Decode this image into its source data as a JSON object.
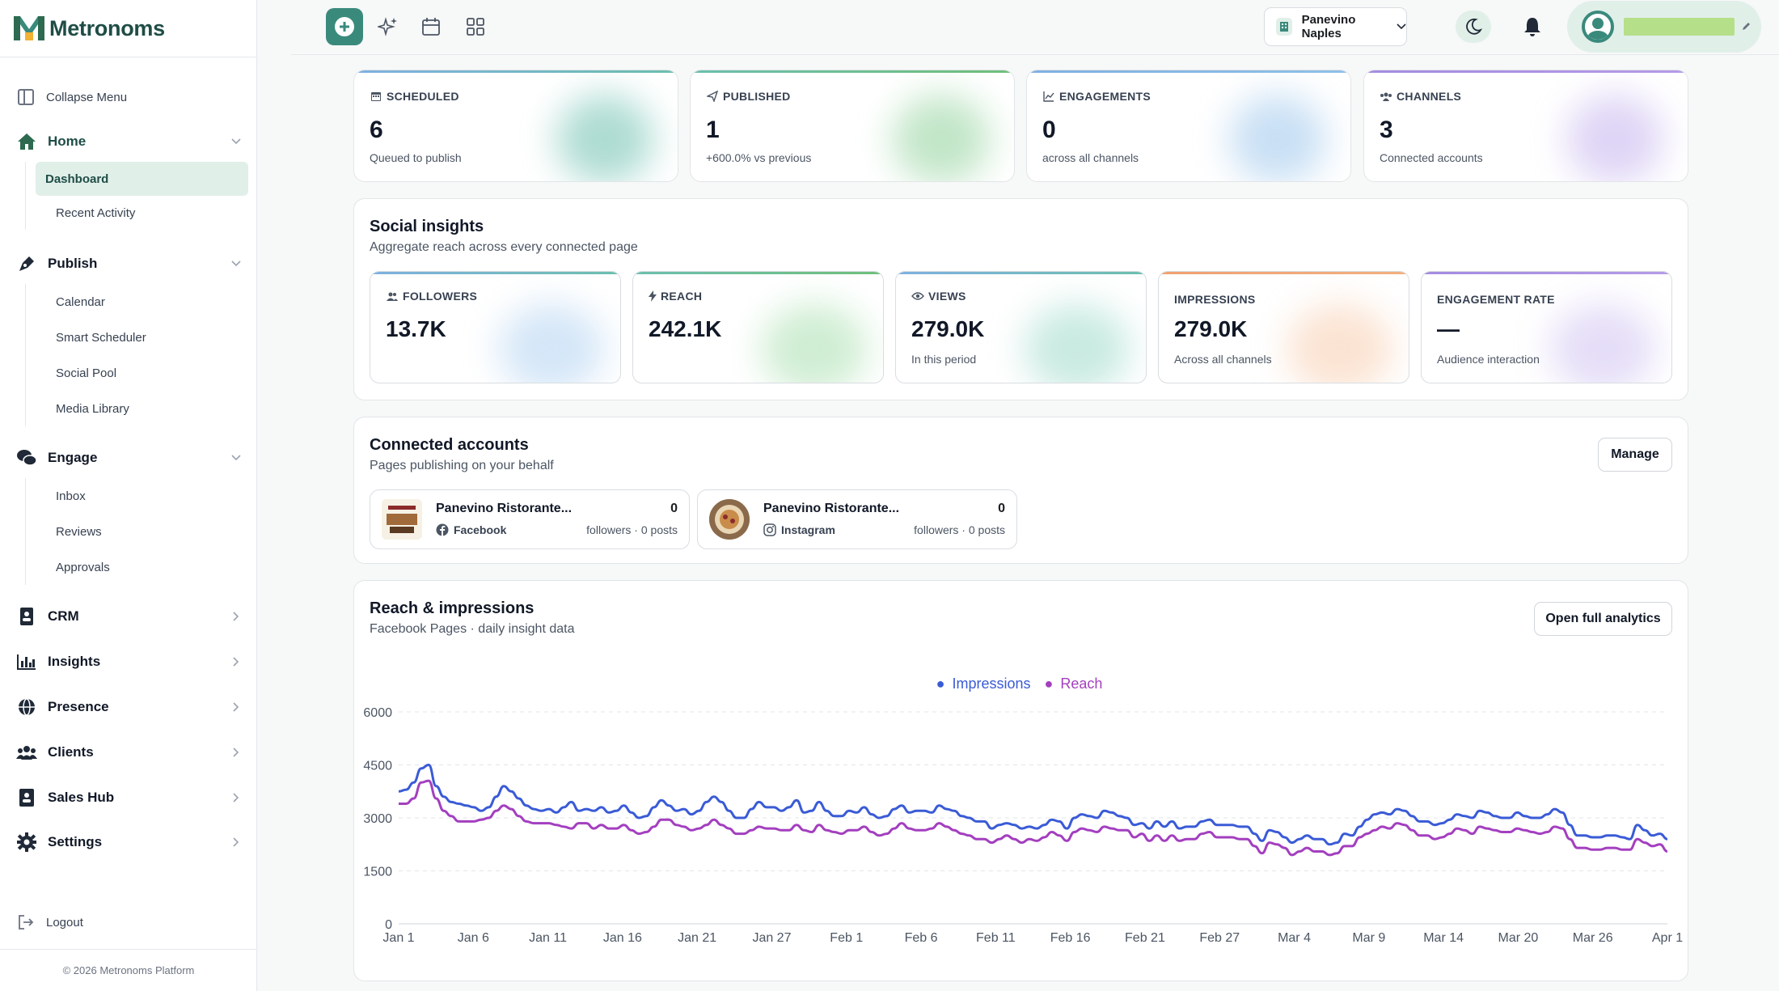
{
  "app": {
    "name": "Metronoms",
    "copyright": "© 2026 Metronoms Platform"
  },
  "sidebar": {
    "collapse_label": "Collapse Menu",
    "logout_label": "Logout",
    "sections": [
      {
        "label": "Home",
        "icon": "home-icon",
        "expanded": true,
        "items": [
          {
            "label": "Dashboard",
            "active": true
          },
          {
            "label": "Recent Activity"
          }
        ]
      },
      {
        "label": "Publish",
        "icon": "pen-nib-icon",
        "expanded": true,
        "items": [
          {
            "label": "Calendar"
          },
          {
            "label": "Smart Scheduler"
          },
          {
            "label": "Social Pool"
          },
          {
            "label": "Media Library"
          }
        ]
      },
      {
        "label": "Engage",
        "icon": "chat-bubbles-icon",
        "expanded": true,
        "items": [
          {
            "label": "Inbox"
          },
          {
            "label": "Reviews"
          },
          {
            "label": "Approvals"
          }
        ]
      },
      {
        "label": "CRM",
        "icon": "contact-book-icon",
        "expanded": false
      },
      {
        "label": "Insights",
        "icon": "bar-chart-icon",
        "expanded": false
      },
      {
        "label": "Presence",
        "icon": "globe-icon",
        "expanded": false
      },
      {
        "label": "Clients",
        "icon": "users-icon",
        "expanded": false
      },
      {
        "label": "Sales Hub",
        "icon": "id-card-icon",
        "expanded": false
      },
      {
        "label": "Settings",
        "icon": "gear-icon",
        "expanded": false
      }
    ]
  },
  "topbar": {
    "icons": [
      "plus-circle-icon",
      "sparkles-icon",
      "calendar-icon",
      "grid-icon"
    ],
    "location": "Panevino Naples"
  },
  "stats": [
    {
      "label": "SCHEDULED",
      "value": "6",
      "sub": "Queued to publish",
      "icon": "calendar-icon",
      "accent": "#6bbfae"
    },
    {
      "label": "PUBLISHED",
      "value": "1",
      "sub": "+600.0% vs previous",
      "icon": "send-icon",
      "accent": "#6fbf7a"
    },
    {
      "label": "ENGAGEMENTS",
      "value": "0",
      "sub": "across all channels",
      "icon": "trend-icon",
      "accent": "#7fb0e0"
    },
    {
      "label": "CHANNELS",
      "value": "3",
      "sub": "Connected accounts",
      "icon": "users-icon",
      "accent": "#a38be0"
    }
  ],
  "social_insights": {
    "title": "Social insights",
    "subtitle": "Aggregate reach across every connected page",
    "metrics": [
      {
        "label": "FOLLOWERS",
        "value": "13.7K",
        "sub": "",
        "icon": "users-icon",
        "accent": "#7fb0e0"
      },
      {
        "label": "REACH",
        "value": "242.1K",
        "sub": "",
        "icon": "bolt-icon",
        "accent": "#6fbf7a"
      },
      {
        "label": "VIEWS",
        "value": "279.0K",
        "sub": "In this period",
        "icon": "eye-icon",
        "accent": "#6bbfae"
      },
      {
        "label": "IMPRESSIONS",
        "value": "279.0K",
        "sub": "Across all channels",
        "icon": "",
        "accent": "#f0a070"
      },
      {
        "label": "ENGAGEMENT RATE",
        "value": "—",
        "sub": "Audience interaction",
        "icon": "",
        "accent": "#a38be0"
      }
    ]
  },
  "connected_accounts": {
    "title": "Connected accounts",
    "subtitle": "Pages publishing on your behalf",
    "manage_label": "Manage",
    "accounts": [
      {
        "name": "Panevino Ristorante...",
        "platform": "Facebook",
        "count": "0",
        "meta": "followers · 0 posts"
      },
      {
        "name": "Panevino Ristorante...",
        "platform": "Instagram",
        "count": "0",
        "meta": "followers · 0 posts"
      }
    ]
  },
  "reach_panel": {
    "title": "Reach & impressions",
    "subtitle": "Facebook Pages · daily insight data",
    "button_label": "Open full analytics"
  },
  "chart_data": {
    "type": "line",
    "ylim": [
      0,
      6000
    ],
    "yticks": [
      "0",
      "1500",
      "3000",
      "4500",
      "6000"
    ],
    "xticks": [
      "Jan 1",
      "Jan 6",
      "Jan 11",
      "Jan 16",
      "Jan 21",
      "Jan 27",
      "Feb 1",
      "Feb 6",
      "Feb 11",
      "Feb 16",
      "Feb 21",
      "Feb 27",
      "Mar 4",
      "Mar 9",
      "Mar 14",
      "Mar 20",
      "Mar 26",
      "Apr 1"
    ],
    "legend": "top-center",
    "series": [
      {
        "name": "Impressions",
        "color": "#3a5bd6",
        "values": [
          3750,
          3800,
          4000,
          4400,
          4500,
          3900,
          3600,
          3450,
          3400,
          3350,
          3300,
          3200,
          3300,
          3600,
          3900,
          3750,
          3550,
          3350,
          3250,
          3200,
          3250,
          3150,
          3300,
          3450,
          3200,
          3250,
          3200,
          3300,
          3150,
          3200,
          3350,
          3150,
          3000,
          3050,
          3300,
          3500,
          3350,
          3200,
          3250,
          3100,
          3200,
          3450,
          3600,
          3450,
          3200,
          3000,
          3000,
          3250,
          3450,
          3300,
          3300,
          3200,
          3300,
          3500,
          3150,
          3200,
          3450,
          3200,
          3050,
          3050,
          3200,
          3150,
          3300,
          3100,
          3000,
          3050,
          3250,
          3350,
          3150,
          3200,
          3200,
          3150,
          3350,
          3250,
          3200,
          3050,
          3000,
          2900,
          2900,
          2700,
          2800,
          2850,
          2800,
          2700,
          2750,
          2700,
          2800,
          2950,
          2900,
          2700,
          3000,
          3100,
          3050,
          3000,
          3200,
          3150,
          3050,
          3000,
          2800,
          2850,
          2700,
          2900,
          2750,
          2900,
          2700,
          2750,
          2750,
          2900,
          2950,
          2800,
          2800,
          2800,
          2750,
          2750,
          2550,
          2350,
          2650,
          2600,
          2450,
          2300,
          2400,
          2500,
          2400,
          2400,
          2250,
          2300,
          2550,
          2500,
          2750,
          2950,
          3100,
          3150,
          3100,
          3250,
          3200,
          3050,
          2900,
          2900,
          2800,
          2850,
          2950,
          3100,
          3050,
          3000,
          3200,
          3150,
          3050,
          3000,
          3000,
          3150,
          3050,
          3000,
          3000,
          3100,
          3250,
          3150,
          2800,
          2500,
          2500,
          2450,
          2450,
          2500,
          2500,
          2450,
          2400,
          2800,
          2650,
          2500,
          2550,
          2400
        ]
      },
      {
        "name": "Reach",
        "color": "#a33fbf",
        "values": [
          3400,
          3400,
          3550,
          4000,
          4050,
          3550,
          3200,
          3050,
          2900,
          2900,
          2900,
          2950,
          3000,
          3200,
          3350,
          3250,
          3050,
          2900,
          2850,
          2850,
          2850,
          2800,
          2750,
          2700,
          2850,
          2850,
          2700,
          2800,
          2700,
          2700,
          2800,
          2650,
          2550,
          2600,
          2750,
          2950,
          2950,
          2800,
          2750,
          2650,
          2700,
          2800,
          2950,
          2800,
          2700,
          2550,
          2550,
          2650,
          2750,
          2700,
          2700,
          2650,
          2650,
          2800,
          2650,
          2600,
          2800,
          2650,
          2600,
          2550,
          2650,
          2650,
          2750,
          2600,
          2500,
          2550,
          2700,
          2850,
          2700,
          2650,
          2650,
          2700,
          2850,
          2750,
          2650,
          2550,
          2500,
          2400,
          2400,
          2300,
          2400,
          2500,
          2400,
          2300,
          2400,
          2350,
          2450,
          2600,
          2500,
          2350,
          2600,
          2700,
          2650,
          2600,
          2750,
          2700,
          2650,
          2650,
          2450,
          2550,
          2350,
          2500,
          2350,
          2500,
          2350,
          2400,
          2400,
          2550,
          2600,
          2450,
          2450,
          2450,
          2400,
          2400,
          2200,
          2000,
          2300,
          2250,
          2150,
          1950,
          2050,
          2150,
          2050,
          2050,
          1950,
          2000,
          2200,
          2200,
          2450,
          2550,
          2650,
          2750,
          2700,
          2850,
          2800,
          2650,
          2500,
          2500,
          2400,
          2450,
          2550,
          2700,
          2650,
          2550,
          2750,
          2700,
          2650,
          2600,
          2600,
          2700,
          2650,
          2600,
          2550,
          2600,
          2750,
          2700,
          2400,
          2150,
          2150,
          2100,
          2100,
          2150,
          2150,
          2100,
          2100,
          2400,
          2300,
          2200,
          2250,
          2050
        ]
      }
    ]
  }
}
